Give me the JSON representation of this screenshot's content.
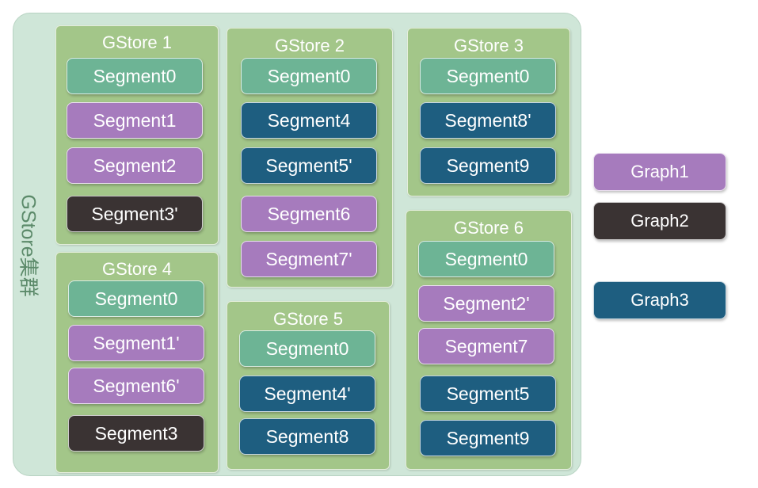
{
  "cluster": {
    "label": "GStore集群"
  },
  "colors": {
    "segment0": "#6db495",
    "graph1": "#a67bbd",
    "graph2": "#3a3333",
    "graph3": "#1e5e80",
    "store_fill": "#a3c689",
    "cluster_fill": "#cfe6d8"
  },
  "stores": [
    {
      "title": "GStore 1",
      "segments": [
        "Segment0",
        "Segment1",
        "Segment2",
        "Segment3'"
      ]
    },
    {
      "title": "GStore 2",
      "segments": [
        "Segment0",
        "Segment4",
        "Segment5'",
        "Segment6",
        "Segment7'"
      ]
    },
    {
      "title": "GStore 3",
      "segments": [
        "Segment0",
        "Segment8'",
        "Segment9"
      ]
    },
    {
      "title": "GStore 4",
      "segments": [
        "Segment0",
        "Segment1'",
        "Segment6'",
        "Segment3"
      ]
    },
    {
      "title": "GStore 5",
      "segments": [
        "Segment0",
        "Segment4'",
        "Segment8"
      ]
    },
    {
      "title": "GStore 6",
      "segments": [
        "Segment0",
        "Segment2'",
        "Segment7",
        "Segment5",
        "Segment9"
      ]
    }
  ],
  "legend": [
    "Graph1",
    "Graph2",
    "Graph3"
  ]
}
